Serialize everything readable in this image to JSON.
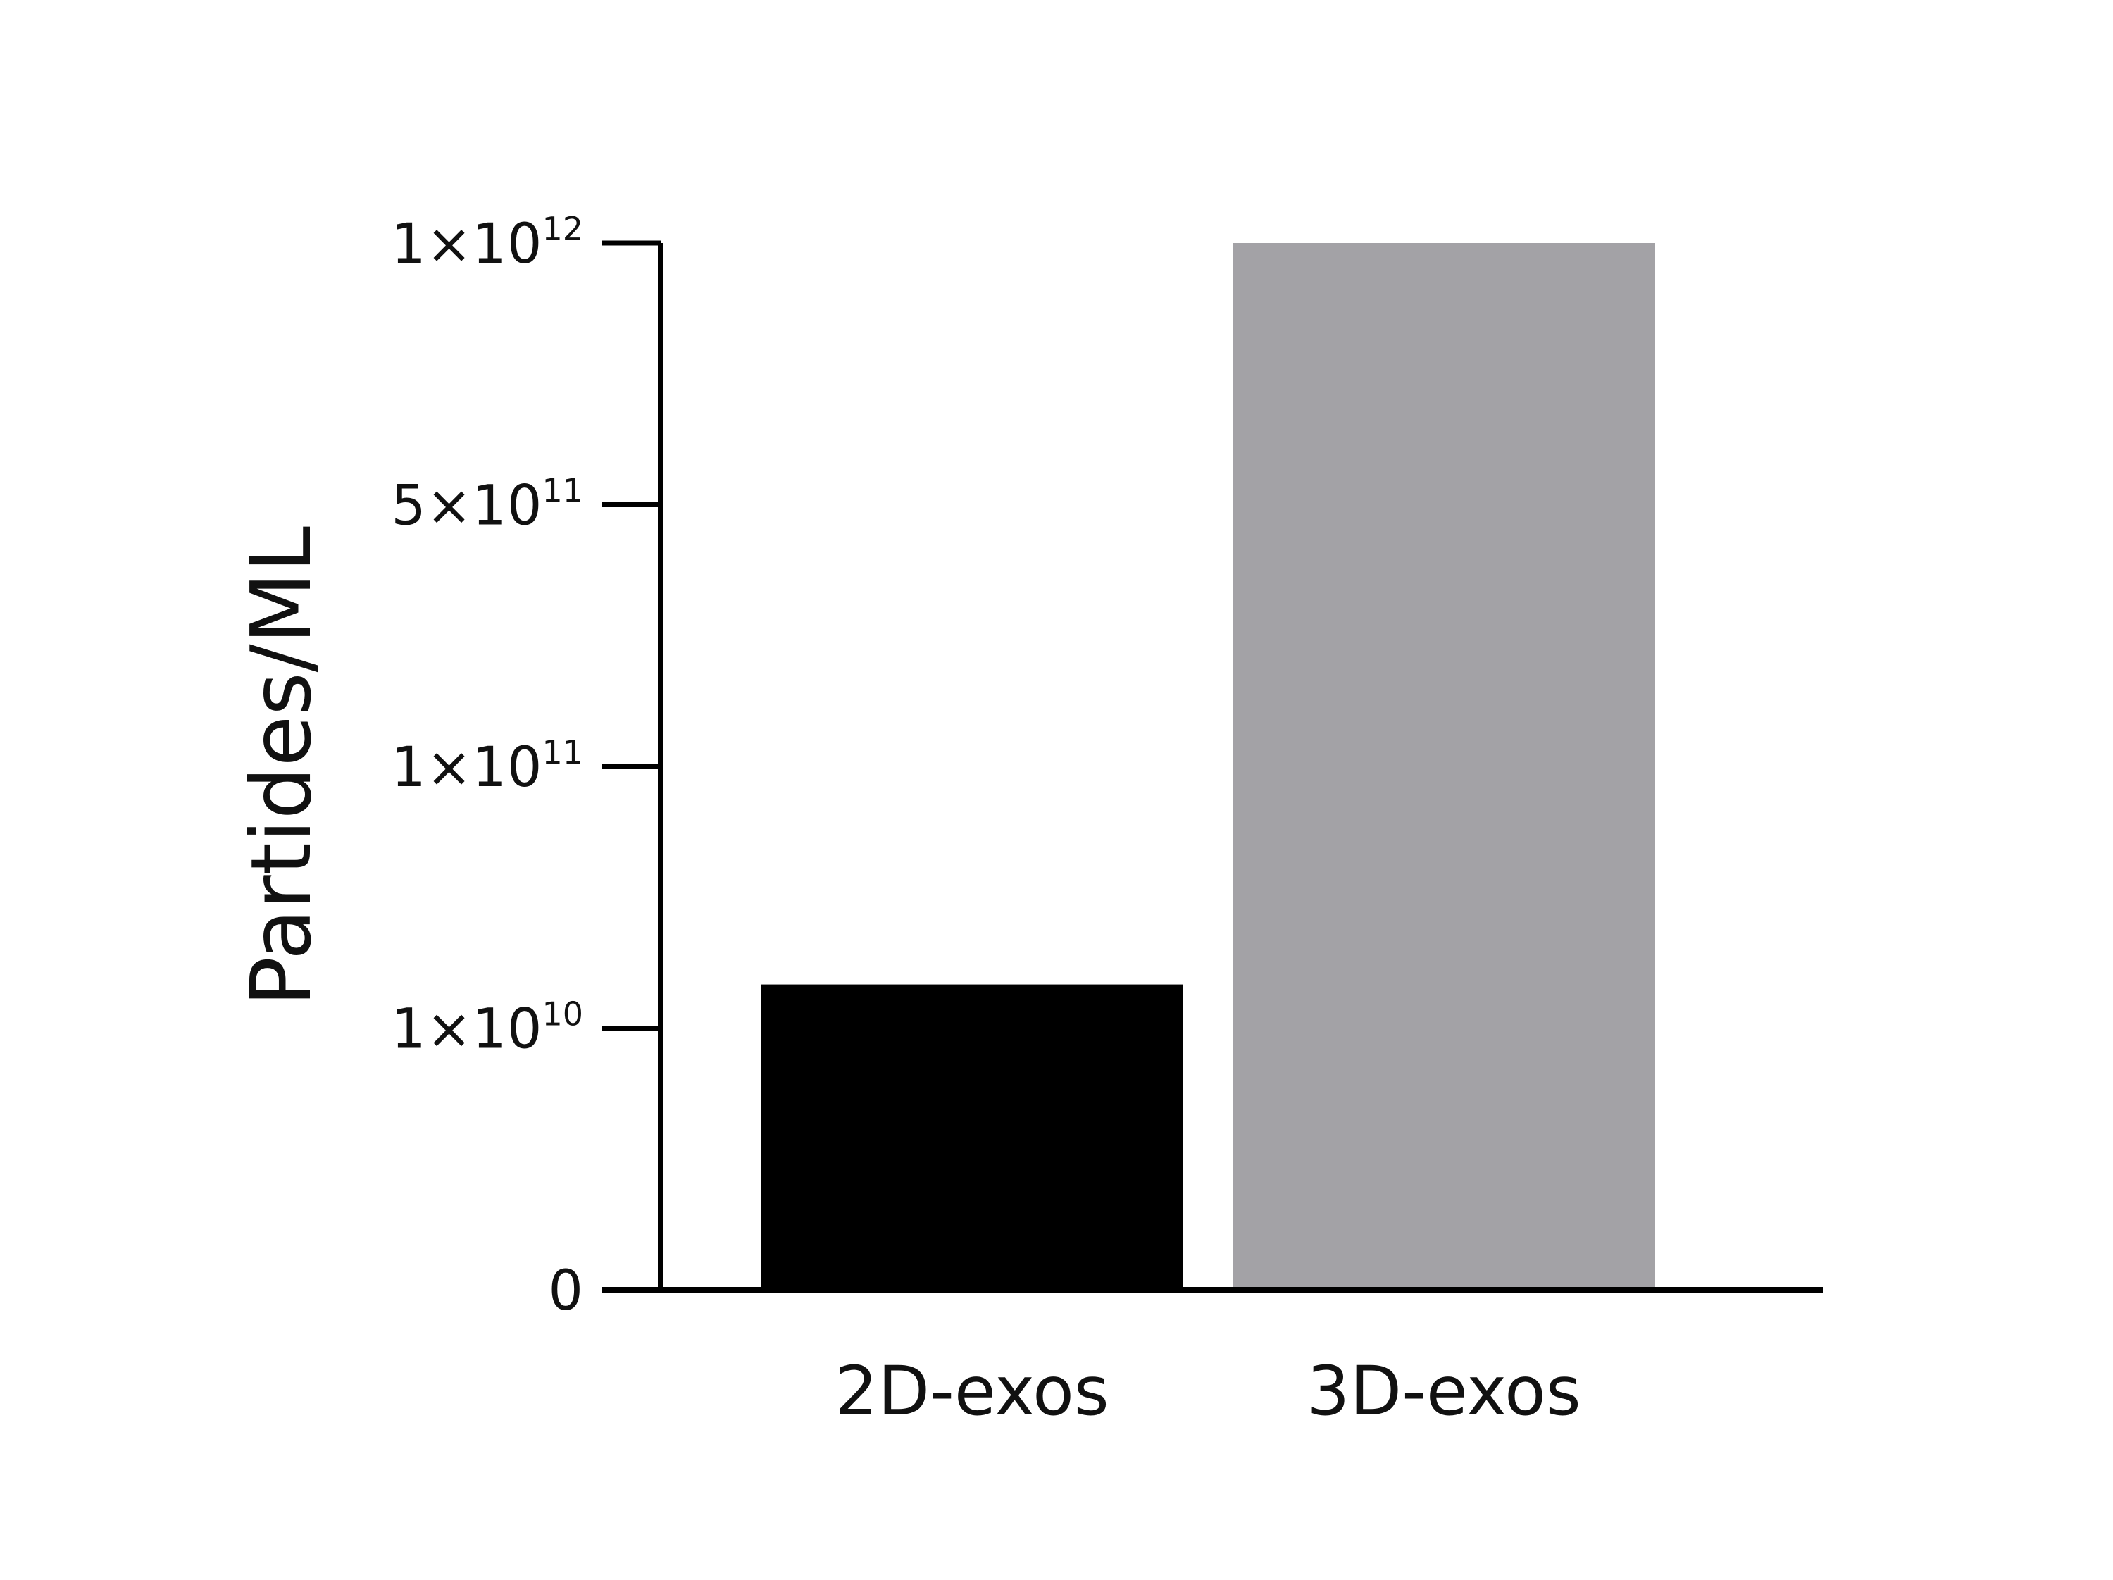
{
  "chart_data": {
    "type": "bar",
    "ylabel": "Partides/ML",
    "categories": [
      "2D-exos",
      "3D-exos"
    ],
    "values": [
      25000000000,
      1000000000000
    ],
    "bar_colors": [
      "#000000",
      "#a3a2a6"
    ],
    "y_ticks": [
      {
        "value": 0,
        "base": "0",
        "exp": ""
      },
      {
        "value": 10000000000,
        "base": "1×10",
        "exp": "10"
      },
      {
        "value": 100000000000,
        "base": "1×10",
        "exp": "11"
      },
      {
        "value": 500000000000,
        "base": "5×10",
        "exp": "11"
      },
      {
        "value": 1000000000000,
        "base": "1×10",
        "exp": "12"
      }
    ],
    "ylim": [
      0,
      1000000000000
    ],
    "y_scale": "segmented",
    "grid": false
  }
}
